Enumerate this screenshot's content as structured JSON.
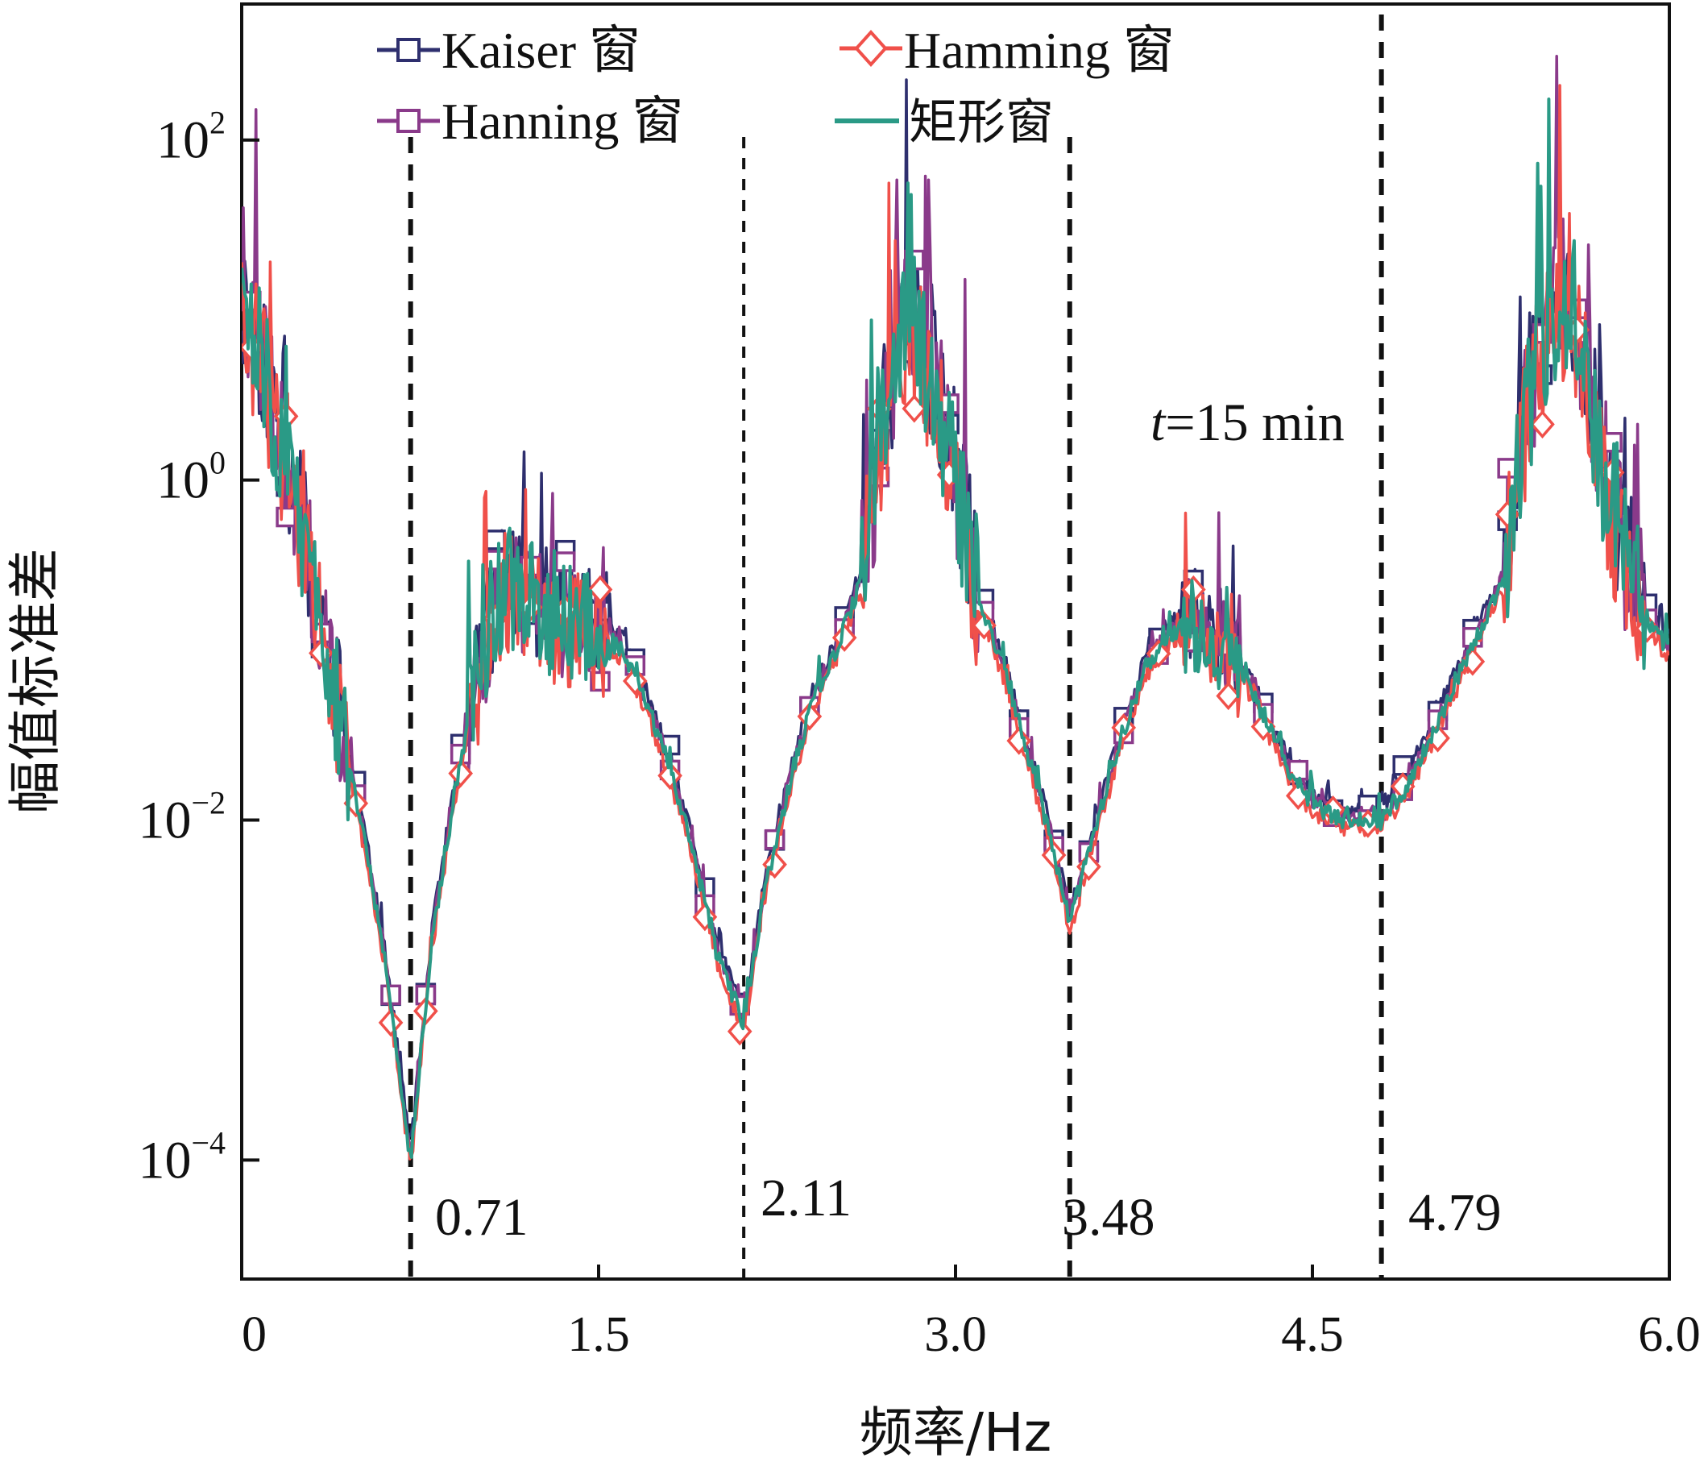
{
  "chart_data": {
    "type": "line",
    "title": "",
    "xlabel": "频率/Hz",
    "ylabel": "幅值标准差",
    "xlim": [
      0,
      6.0
    ],
    "ylim_log10": [
      -4.7,
      2.8
    ],
    "y_scale": "log",
    "x_ticks": [
      "0",
      "1.5",
      "3.0",
      "4.5",
      "6.0"
    ],
    "y_ticks": [
      {
        "base": "10",
        "exp": "2"
      },
      {
        "base": "10",
        "exp": "0"
      },
      {
        "base": "10",
        "exp": "−2"
      },
      {
        "base": "10",
        "exp": "−4"
      }
    ],
    "legend_position": "top",
    "series": [
      {
        "name": "Kaiser 窗",
        "color": "#2e2f6e",
        "marker": "square-open"
      },
      {
        "name": "Hamming 窗",
        "color": "#f0504a",
        "marker": "diamond-open"
      },
      {
        "name": "Hanning 窗",
        "color": "#8a3a8a",
        "marker": "square-open"
      },
      {
        "name": "矩形窗",
        "color": "#2a9a86",
        "marker": "none"
      }
    ],
    "envelope_x": [
      0.0,
      0.1,
      0.2,
      0.3,
      0.4,
      0.5,
      0.6,
      0.71,
      0.8,
      0.9,
      1.0,
      1.1,
      1.2,
      1.3,
      1.4,
      1.5,
      1.6,
      1.7,
      1.8,
      1.9,
      2.0,
      2.11,
      2.2,
      2.3,
      2.4,
      2.5,
      2.6,
      2.7,
      2.8,
      2.9,
      3.0,
      3.1,
      3.2,
      3.3,
      3.4,
      3.48,
      3.6,
      3.7,
      3.8,
      3.9,
      4.0,
      4.1,
      4.2,
      4.3,
      4.4,
      4.5,
      4.6,
      4.7,
      4.79,
      4.9,
      5.0,
      5.1,
      5.2,
      5.3,
      5.4,
      5.5,
      5.6,
      5.7,
      5.8,
      5.9,
      6.0
    ],
    "envelope_log10y": [
      1.0,
      0.6,
      0.0,
      -0.6,
      -1.3,
      -2.0,
      -2.8,
      -4.0,
      -2.7,
      -1.8,
      -1.1,
      -0.6,
      -0.7,
      -0.8,
      -0.85,
      -0.9,
      -1.0,
      -1.3,
      -1.7,
      -2.2,
      -2.8,
      -3.2,
      -2.4,
      -1.8,
      -1.3,
      -1.0,
      -0.6,
      0.3,
      1.0,
      0.6,
      0.0,
      -0.7,
      -1.1,
      -1.6,
      -2.1,
      -2.6,
      -2.0,
      -1.5,
      -1.1,
      -0.9,
      -0.85,
      -0.95,
      -1.1,
      -1.4,
      -1.7,
      -1.9,
      -2.0,
      -2.0,
      -2.0,
      -1.8,
      -1.5,
      -1.2,
      -0.9,
      -0.6,
      0.4,
      1.0,
      1.0,
      0.2,
      -0.4,
      -0.8,
      -1.0
    ],
    "vlines": [
      0.71,
      2.11,
      3.48,
      4.79
    ],
    "annotations": {
      "vline_labels": [
        "0.71",
        "2.11",
        "3.48",
        "4.79"
      ],
      "time_prefix": "t",
      "time_suffix": "=15 min"
    }
  }
}
